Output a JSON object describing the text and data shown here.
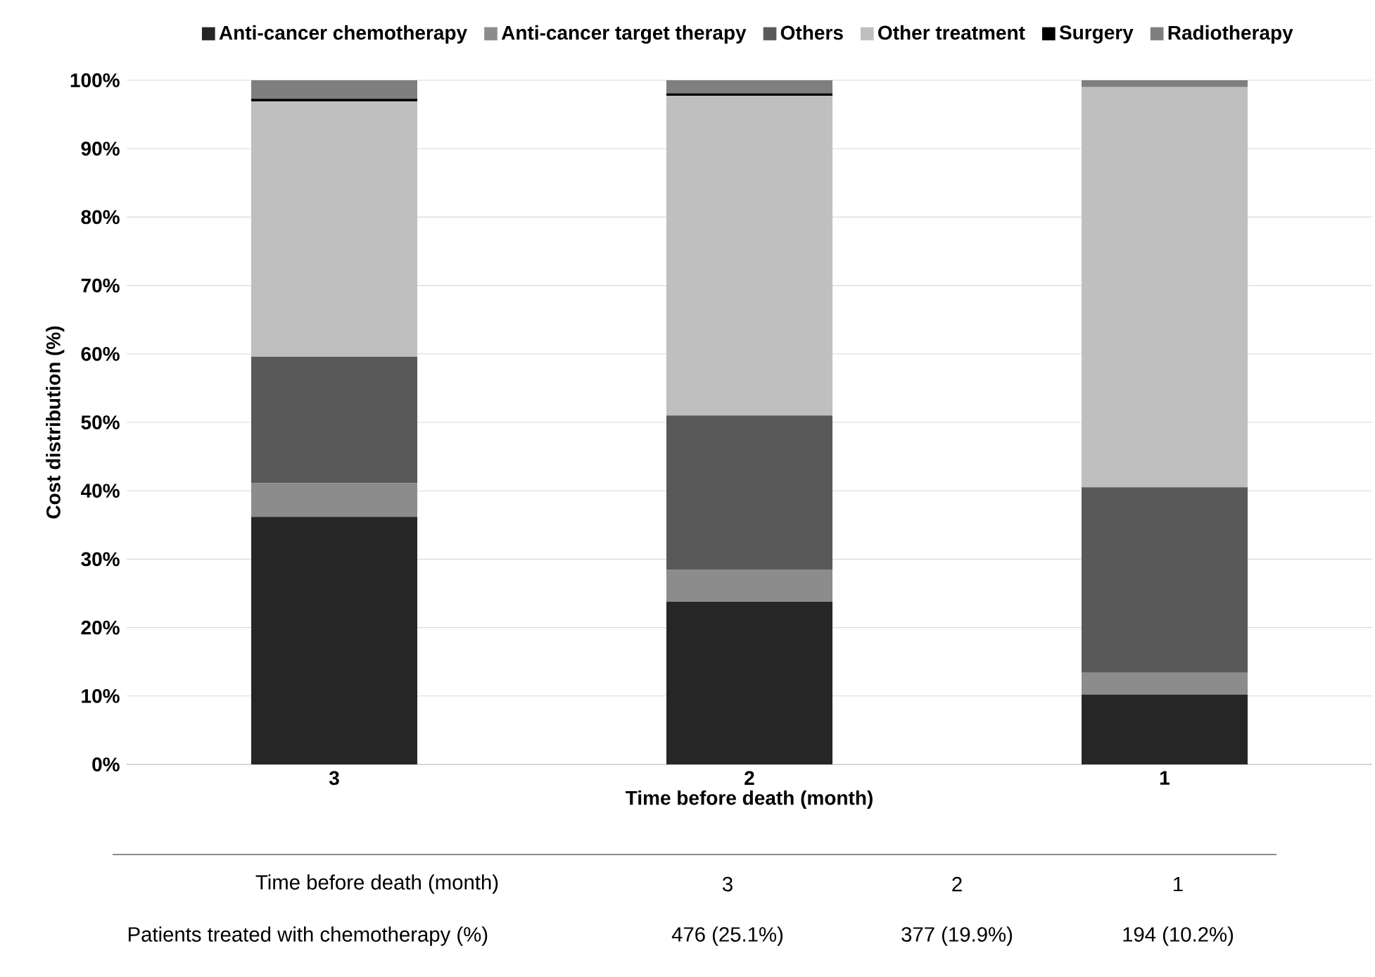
{
  "chart_data": {
    "type": "bar",
    "stacked": true,
    "xlabel": "Time before death (month)",
    "ylabel": "Cost distribution (%)",
    "categories": [
      "3",
      "2",
      "1"
    ],
    "series": [
      {
        "name": "Anti-cancer chemotherapy",
        "color": "#262626",
        "values": [
          36.2,
          23.8,
          10.2
        ]
      },
      {
        "name": "Anti-cancer target therapy",
        "color": "#8c8c8c",
        "values": [
          4.9,
          4.7,
          3.2
        ]
      },
      {
        "name": "Others",
        "color": "#595959",
        "values": [
          18.5,
          22.5,
          27.1
        ]
      },
      {
        "name": "Other treatment",
        "color": "#bfbfbf",
        "values": [
          37.3,
          46.7,
          58.5
        ]
      },
      {
        "name": "Surgery",
        "color": "#000000",
        "values": [
          0.4,
          0.4,
          0
        ]
      },
      {
        "name": "Radiotherapy",
        "color": "#7f7f7f",
        "values": [
          2.7,
          1.9,
          1.0
        ]
      }
    ],
    "ylim": [
      0,
      100
    ],
    "yticks": [
      {
        "value": 0,
        "label": "0%"
      },
      {
        "value": 10,
        "label": "10%"
      },
      {
        "value": 20,
        "label": "20%"
      },
      {
        "value": 30,
        "label": "30%"
      },
      {
        "value": 40,
        "label": "40%"
      },
      {
        "value": 50,
        "label": "50%"
      },
      {
        "value": 60,
        "label": "60%"
      },
      {
        "value": 70,
        "label": "70%"
      },
      {
        "value": 80,
        "label": "80%"
      },
      {
        "value": 90,
        "label": "90%"
      },
      {
        "value": 100,
        "label": "100%"
      }
    ],
    "grid": "y",
    "legend": "top",
    "annotations": [
      "Time before death (month)",
      "Patients treated with chemotherapy  (%)",
      "476 (25.1%)",
      "377 (19.9%)",
      "194 (10.2%)"
    ]
  }
}
